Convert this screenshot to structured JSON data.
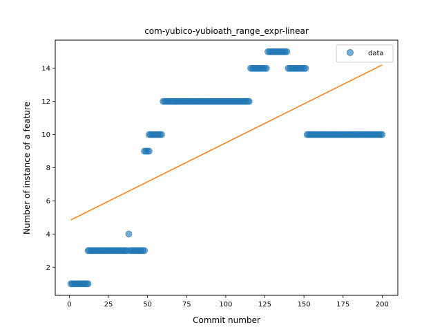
{
  "chart_data": {
    "type": "scatter",
    "title": "com-yubico-yubioath_range_expr-linear",
    "xlabel": "Commit number",
    "ylabel": "Number of instance of a feature",
    "xlim": [
      -9,
      210
    ],
    "ylim": [
      0.3,
      15.7
    ],
    "xticks": [
      0,
      25,
      50,
      75,
      100,
      125,
      150,
      175,
      200
    ],
    "yticks": [
      2,
      4,
      6,
      8,
      10,
      12,
      14
    ],
    "grid": false,
    "legend": {
      "position": "top-right",
      "entries": [
        "data"
      ]
    },
    "colors": {
      "data": "#1f77b4",
      "fit": "#ff7f0e"
    },
    "series": [
      {
        "name": "data",
        "kind": "points",
        "segments": [
          {
            "x_from": 1,
            "x_to": 12,
            "y": 1
          },
          {
            "x_from": 12,
            "x_to": 37,
            "y": 3
          },
          {
            "x_from": 38,
            "x_to": 38,
            "y": 4
          },
          {
            "x_from": 39,
            "x_to": 48,
            "y": 3
          },
          {
            "x_from": 48,
            "x_to": 51,
            "y": 9
          },
          {
            "x_from": 51,
            "x_to": 59,
            "y": 10
          },
          {
            "x_from": 60,
            "x_to": 115,
            "y": 12
          },
          {
            "x_from": 116,
            "x_to": 126,
            "y": 14
          },
          {
            "x_from": 127,
            "x_to": 139,
            "y": 15
          },
          {
            "x_from": 140,
            "x_to": 151,
            "y": 14
          },
          {
            "x_from": 152,
            "x_to": 200,
            "y": 10
          }
        ]
      },
      {
        "name": "",
        "kind": "line",
        "x": [
          1,
          200
        ],
        "y": [
          4.85,
          14.2
        ]
      }
    ]
  }
}
